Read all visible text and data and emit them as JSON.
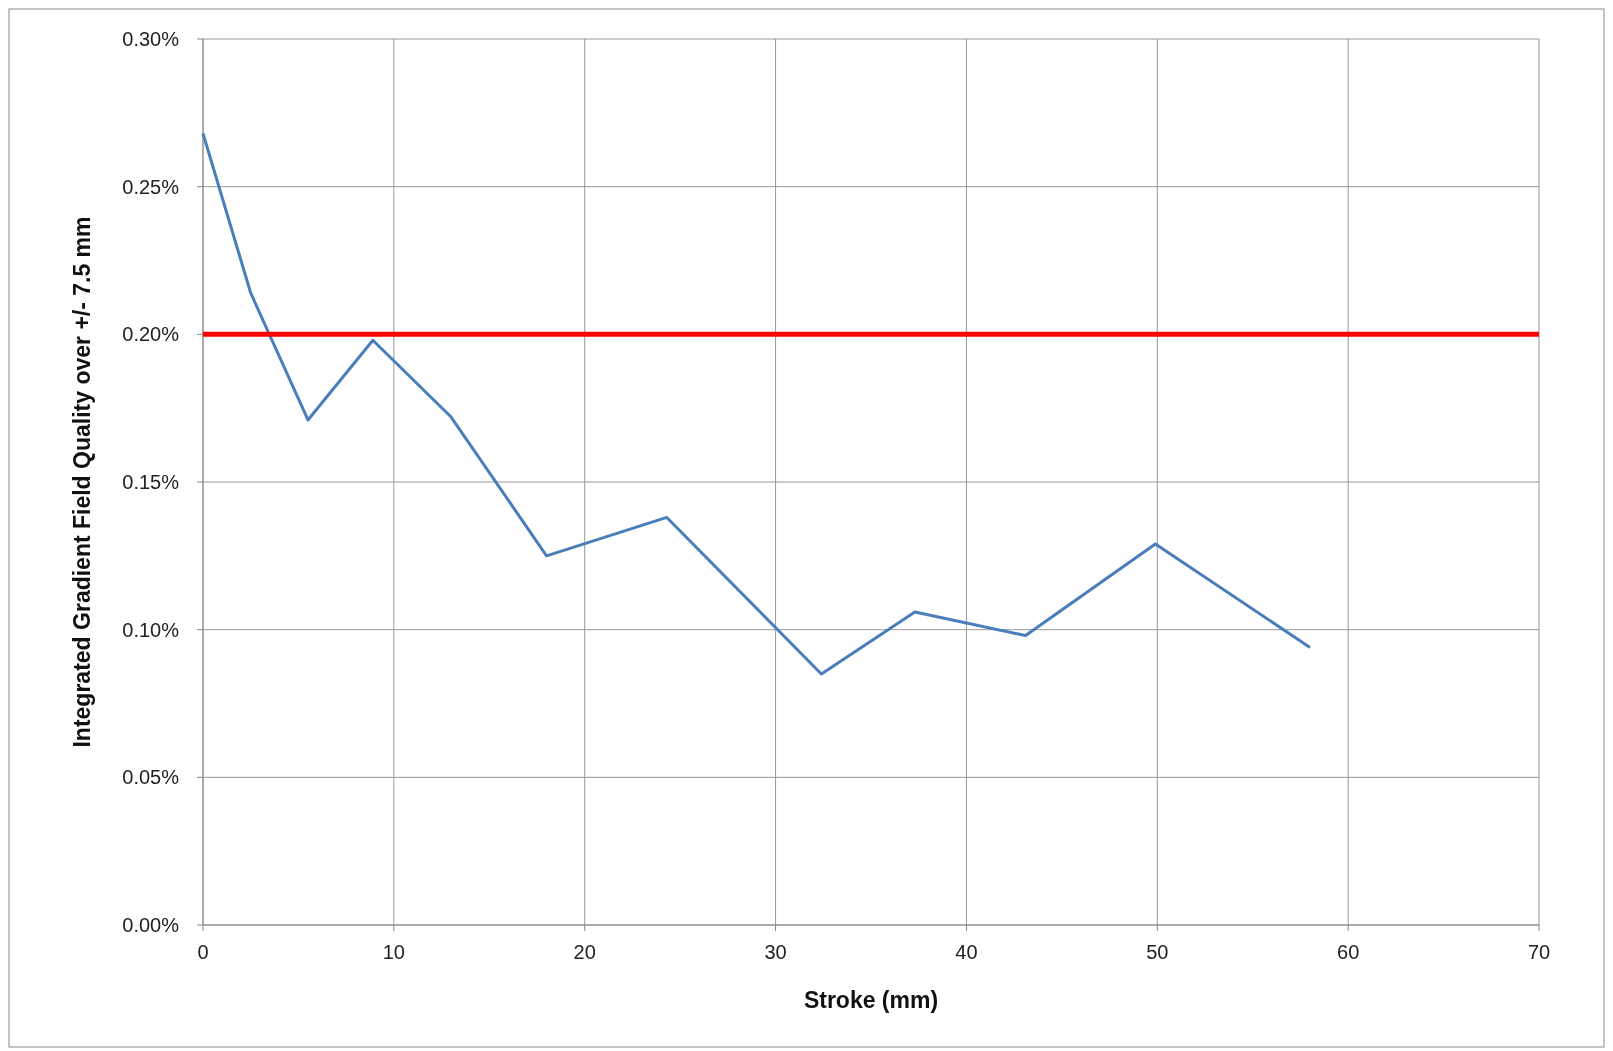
{
  "chart_data": {
    "type": "line",
    "xlabel": "Stroke (mm)",
    "ylabel": "Integrated Gradient Field Quality over +/- 7.5 mm",
    "series": [
      {
        "color": "#4a7ebb",
        "x": [
          0,
          2.5,
          5.5,
          8.9,
          13.0,
          18.0,
          24.3,
          32.4,
          37.3,
          43.1,
          49.9,
          58.0
        ],
        "values": [
          0.268,
          0.214,
          0.171,
          0.198,
          0.172,
          0.125,
          0.138,
          0.085,
          0.106,
          0.098,
          0.129,
          0.094
        ]
      }
    ],
    "ref_lines": [
      {
        "axis": "y",
        "value": 0.2,
        "color": "#ff0000"
      }
    ],
    "xlim": [
      0,
      70
    ],
    "xticks": [
      0,
      10,
      20,
      30,
      40,
      50,
      60,
      70
    ],
    "ylim": [
      0,
      0.3
    ],
    "yticks": [
      {
        "value": 0,
        "label": "0.00%"
      },
      {
        "value": 0.05,
        "label": "0.05%"
      },
      {
        "value": 0.1,
        "label": "0.10%"
      },
      {
        "value": 0.15,
        "label": "0.15%"
      },
      {
        "value": 0.2,
        "label": "0.20%"
      },
      {
        "value": 0.25,
        "label": "0.25%"
      },
      {
        "value": 0.3,
        "label": "0.30%"
      }
    ],
    "grid": true,
    "marker": "none",
    "line_style": "solid"
  }
}
